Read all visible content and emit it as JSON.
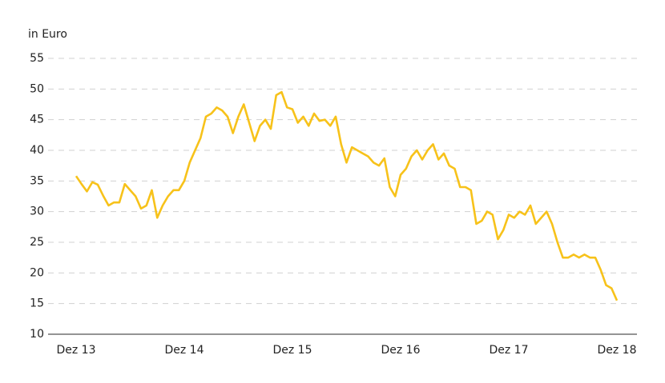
{
  "chart_data": {
    "type": "line",
    "y_label": "in Euro",
    "categories": [
      "Dez 13",
      null,
      null,
      null,
      null,
      null,
      null,
      null,
      null,
      null,
      null,
      null,
      null,
      null,
      null,
      null,
      null,
      null,
      null,
      null,
      "Dez 14",
      null,
      null,
      null,
      null,
      null,
      null,
      null,
      null,
      null,
      null,
      null,
      null,
      null,
      null,
      null,
      null,
      null,
      null,
      null,
      "Dez 15",
      null,
      null,
      null,
      null,
      null,
      null,
      null,
      null,
      null,
      null,
      null,
      null,
      null,
      null,
      null,
      null,
      null,
      null,
      null,
      "Dez 16",
      null,
      null,
      null,
      null,
      null,
      null,
      null,
      null,
      null,
      null,
      null,
      null,
      null,
      null,
      null,
      null,
      null,
      null,
      null,
      "Dez 17",
      null,
      null,
      null,
      null,
      null,
      null,
      null,
      null,
      null,
      null,
      null,
      null,
      null,
      null,
      null,
      null,
      null,
      null,
      null,
      "Dez 18"
    ],
    "series": [
      {
        "color": "#f7c21a",
        "values": [
          35.8,
          34.5,
          33.3,
          34.8,
          34.4,
          32.6,
          31,
          31.5,
          31.5,
          34.5,
          33.5,
          32.5,
          30.5,
          31,
          33.5,
          29,
          31,
          32.5,
          33.5,
          33.5,
          35,
          38,
          40,
          42,
          45.5,
          46,
          47,
          46.5,
          45.5,
          42.8,
          45.5,
          47.5,
          44.5,
          41.5,
          44,
          45,
          43.5,
          49,
          49.5,
          47,
          46.7,
          44.5,
          45.5,
          44,
          46,
          44.8,
          45,
          44,
          45.5,
          41,
          38,
          40.5,
          40,
          39.5,
          39,
          38,
          37.5,
          38.7,
          34,
          32.5,
          36,
          37,
          39,
          40,
          38.5,
          40,
          41,
          38.5,
          39.5,
          37.5,
          37,
          34,
          34,
          33.5,
          28,
          28.5,
          30,
          29.5,
          25.5,
          27,
          29.5,
          29,
          30,
          29.5,
          31,
          28,
          29,
          30,
          28,
          25,
          22.5,
          22.5,
          23,
          22.5,
          23,
          22.5,
          22.5,
          20.5,
          18,
          17.5,
          15.5
        ]
      }
    ],
    "ylim": [
      10,
      55
    ],
    "yticks": [
      10,
      15,
      20,
      25,
      30,
      35,
      40,
      45,
      50,
      55
    ],
    "grid": true
  }
}
